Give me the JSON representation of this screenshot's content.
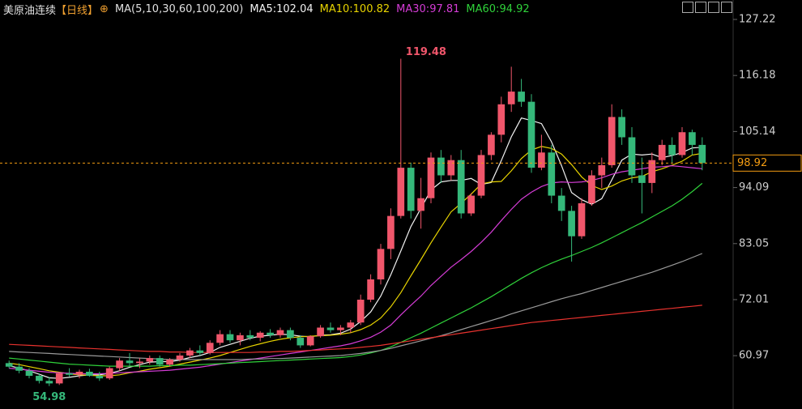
{
  "chart_data": {
    "type": "candlestick",
    "title": "美原油连续",
    "period": "【日线】",
    "indicator": "MA(5,10,30,60,100,200)",
    "ylim": [
      50.46,
      131.05
    ],
    "yticks": [
      60.97,
      72.01,
      83.05,
      94.09,
      105.14,
      116.18,
      127.22
    ],
    "up_color": "#f0566b",
    "down_color": "#35b87a",
    "last_price": 98.92,
    "high_mark": 119.48,
    "low_mark": 54.98,
    "open": [
      59.5,
      58.8,
      58,
      57,
      56,
      55.5,
      57.5,
      57.2,
      57.8,
      57,
      56.5,
      58.5,
      60,
      59.5,
      59.8,
      60.5,
      59.2,
      60.2,
      61,
      62,
      61.5,
      63.5,
      65.2,
      64,
      65,
      64.5,
      65.5,
      65,
      66,
      64.5,
      63,
      64.8,
      66.5,
      66,
      66.5,
      67.5,
      72,
      76,
      82,
      88.5,
      98,
      89.5,
      92,
      100,
      96.5,
      99.5,
      89,
      92.5,
      100.5,
      104.5,
      110.5,
      113,
      111,
      98,
      101,
      92.5,
      89.5,
      84.5,
      91,
      96.5,
      98.5,
      108,
      104,
      96.5,
      95,
      99.5,
      102.5,
      100.5,
      105,
      102.5
    ],
    "high": [
      60,
      59.5,
      58.5,
      57.5,
      56.8,
      57.8,
      58.5,
      58.2,
      58.4,
      57.8,
      58.8,
      60.5,
      61.5,
      60.5,
      61,
      61,
      60.5,
      61.5,
      62.5,
      63,
      64,
      66,
      66,
      65.5,
      66,
      65.8,
      66.2,
      66.5,
      66.5,
      65,
      65,
      67,
      67.5,
      67,
      68,
      73,
      77,
      83,
      90,
      119.48,
      99,
      96,
      101,
      101.5,
      100.5,
      101.5,
      93,
      101.5,
      105,
      112,
      117.9,
      115.5,
      112.5,
      104.5,
      102.5,
      94,
      90.5,
      92,
      97.5,
      100,
      110.5,
      109.5,
      106,
      100,
      101,
      103.5,
      104,
      106,
      105.5,
      104
    ],
    "low": [
      58.5,
      57.5,
      56.5,
      55.5,
      54.98,
      55.2,
      56.8,
      56.5,
      56.8,
      56,
      56.2,
      58,
      59,
      58.5,
      59.2,
      58.8,
      58.8,
      59.8,
      60.5,
      61,
      61.2,
      63,
      63.5,
      63,
      64,
      63.8,
      64.5,
      64.5,
      64,
      62.5,
      62.8,
      64.5,
      65.5,
      65,
      65.5,
      67,
      71.5,
      75,
      80,
      88,
      88,
      86,
      91,
      95,
      95.5,
      88,
      88.5,
      92,
      99.5,
      103,
      109,
      110,
      97,
      97.5,
      91,
      87.5,
      79.5,
      84,
      90.5,
      94,
      98,
      102.5,
      95,
      89,
      93,
      98.5,
      99,
      100,
      100.5,
      97.5
    ],
    "close": [
      58.8,
      58,
      57,
      56,
      55.5,
      57.5,
      57.2,
      57.8,
      57,
      56.5,
      58.5,
      60,
      59.5,
      59.8,
      60.5,
      59.2,
      60.2,
      61,
      62,
      61.5,
      63.5,
      65.2,
      64,
      65,
      64.5,
      65.5,
      65,
      66,
      64.5,
      63,
      64.8,
      66.5,
      66,
      66.5,
      67.5,
      72,
      76,
      82,
      88.5,
      98,
      89.5,
      92,
      100,
      96.5,
      99.5,
      89,
      92.5,
      100.5,
      104.5,
      110.5,
      113,
      111,
      98,
      101,
      92.5,
      89.5,
      84.5,
      91,
      96.5,
      98.5,
      108,
      104,
      96.5,
      95,
      99.5,
      102.5,
      100.5,
      105,
      102.5,
      98.92
    ],
    "series": [
      {
        "name": "MA5:102.04",
        "color": "#f2f2f2",
        "values": [
          59,
          58.5,
          58,
          57.3,
          56.6,
          56.5,
          56.7,
          57,
          57.2,
          57.2,
          57.5,
          58,
          58.7,
          59.2,
          59.7,
          59.8,
          59.8,
          60.1,
          60.6,
          61,
          61.6,
          62.6,
          63.2,
          63.8,
          64.4,
          64.8,
          65,
          65.2,
          65.1,
          64.8,
          64.7,
          65,
          65.1,
          65.4,
          66.2,
          67.7,
          69.6,
          72.7,
          76.9,
          81.6,
          86.4,
          90,
          93.6,
          95.2,
          95.5,
          95.5,
          95.9,
          94.7,
          95.1,
          99.4,
          104.1,
          107.8,
          107.3,
          106.7,
          103.1,
          98.4,
          93.1,
          91.7,
          90.8,
          91.9,
          95.6,
          99.5,
          100.7,
          100.5,
          100.7,
          100,
          100.4,
          101,
          101.9,
          102.04
        ]
      },
      {
        "name": "MA10:100.82",
        "color": "#e8d400",
        "values": [
          59.5,
          59.2,
          58.8,
          58.4,
          58,
          57.7,
          57.4,
          57.2,
          57.1,
          57,
          57,
          57.2,
          57.6,
          57.9,
          58.3,
          58.6,
          58.9,
          59.3,
          59.7,
          60.1,
          60.5,
          61,
          61.6,
          62.2,
          62.8,
          63.3,
          63.8,
          64.2,
          64.5,
          64.7,
          64.8,
          64.9,
          65,
          65.2,
          65.5,
          66.1,
          67,
          68.4,
          70.6,
          73.4,
          76.7,
          79.9,
          83.2,
          86.3,
          89.3,
          91,
          92.8,
          94.8,
          95.2,
          95.3,
          97.4,
          99.8,
          101.5,
          102.2,
          101.8,
          100.7,
          98.6,
          96.2,
          94.5,
          93.7,
          94.4,
          95.4,
          96,
          96.3,
          97.2,
          97.8,
          98.5,
          99.3,
          100.5,
          100.82
        ]
      },
      {
        "name": "MA30:97.81",
        "color": "#d53cd6",
        "values": [
          58.5,
          58.3,
          58.1,
          57.9,
          57.7,
          57.6,
          57.5,
          57.4,
          57.4,
          57.4,
          57.5,
          57.6,
          57.7,
          57.8,
          57.9,
          58,
          58.1,
          58.3,
          58.5,
          58.7,
          59,
          59.3,
          59.6,
          59.9,
          60.2,
          60.5,
          60.8,
          61.1,
          61.4,
          61.7,
          62,
          62.3,
          62.6,
          62.9,
          63.3,
          63.9,
          64.6,
          65.6,
          67,
          69,
          70.9,
          72.7,
          74.8,
          76.6,
          78.4,
          79.9,
          81.5,
          83.3,
          85.3,
          87.6,
          89.8,
          91.8,
          93.2,
          94.3,
          95,
          95.2,
          95.1,
          95.2,
          95.5,
          96,
          96.7,
          97.2,
          97.5,
          97.8,
          98.1,
          98.2,
          98.4,
          98.2,
          98,
          97.81
        ]
      },
      {
        "name": "MA60:94.92",
        "color": "#2fd13a",
        "values": [
          60.5,
          60.3,
          60.1,
          59.9,
          59.7,
          59.5,
          59.3,
          59.2,
          59.1,
          59,
          58.9,
          58.9,
          58.9,
          58.9,
          58.9,
          59,
          59,
          59.1,
          59.1,
          59.2,
          59.3,
          59.4,
          59.5,
          59.6,
          59.7,
          59.8,
          59.9,
          60,
          60.1,
          60.2,
          60.3,
          60.4,
          60.5,
          60.6,
          60.8,
          61.1,
          61.5,
          62,
          62.7,
          63.6,
          64.5,
          65.4,
          66.4,
          67.4,
          68.4,
          69.4,
          70.4,
          71.5,
          72.6,
          73.8,
          75,
          76.2,
          77.3,
          78.3,
          79.2,
          80,
          80.7,
          81.5,
          82.3,
          83.2,
          84.2,
          85.2,
          86.2,
          87.2,
          88.3,
          89.4,
          90.5,
          91.8,
          93.3,
          94.92
        ]
      },
      {
        "color": "#9a9a9a",
        "values": [
          61.8,
          61.7,
          61.6,
          61.5,
          61.4,
          61.3,
          61.2,
          61.1,
          61,
          60.9,
          60.8,
          60.7,
          60.6,
          60.5,
          60.4,
          60.3,
          60.2,
          60.2,
          60.2,
          60.2,
          60.2,
          60.2,
          60.2,
          60.2,
          60.3,
          60.3,
          60.4,
          60.4,
          60.5,
          60.6,
          60.7,
          60.8,
          60.9,
          61,
          61.2,
          61.4,
          61.7,
          62,
          62.4,
          62.9,
          63.4,
          63.9,
          64.4,
          64.9,
          65.5,
          66.1,
          66.7,
          67.3,
          67.9,
          68.5,
          69.2,
          69.8,
          70.4,
          71,
          71.6,
          72.2,
          72.7,
          73.2,
          73.8,
          74.4,
          75,
          75.6,
          76.2,
          76.8,
          77.4,
          78.1,
          78.8,
          79.5,
          80.3,
          81.1
        ]
      },
      {
        "color": "#e8322e",
        "values": [
          63.2,
          63.1,
          63,
          62.9,
          62.8,
          62.7,
          62.6,
          62.5,
          62.4,
          62.3,
          62.2,
          62.1,
          62,
          61.9,
          61.8,
          61.8,
          61.7,
          61.7,
          61.6,
          61.6,
          61.6,
          61.6,
          61.6,
          61.6,
          61.6,
          61.7,
          61.7,
          61.8,
          61.8,
          61.9,
          62,
          62.1,
          62.2,
          62.3,
          62.4,
          62.6,
          62.8,
          63,
          63.3,
          63.6,
          63.9,
          64.2,
          64.5,
          64.8,
          65.1,
          65.4,
          65.7,
          66,
          66.3,
          66.6,
          66.9,
          67.2,
          67.5,
          67.7,
          67.9,
          68.1,
          68.3,
          68.5,
          68.7,
          68.9,
          69.1,
          69.3,
          69.5,
          69.7,
          69.9,
          70.1,
          70.3,
          70.5,
          70.7,
          70.9
        ]
      }
    ]
  }
}
